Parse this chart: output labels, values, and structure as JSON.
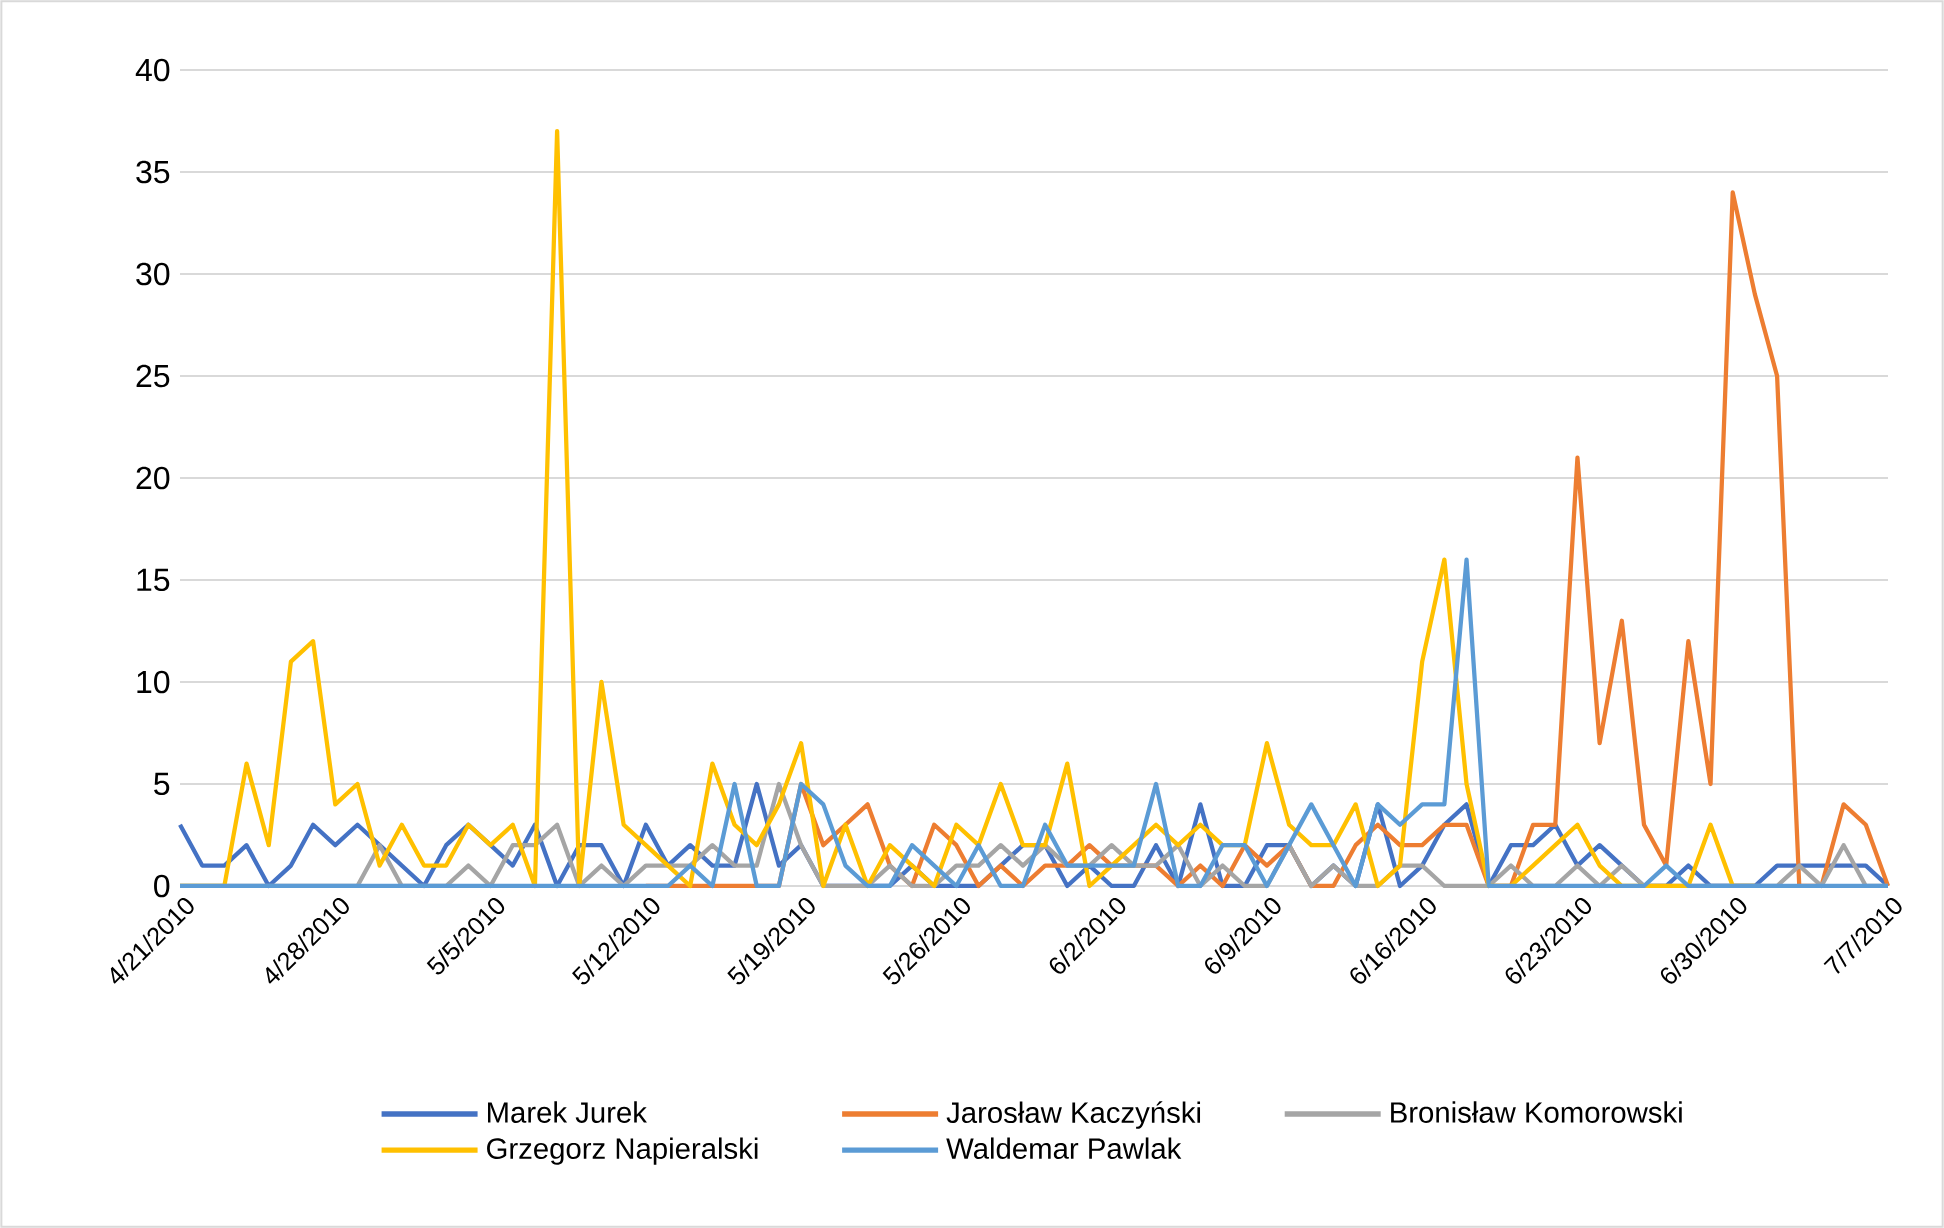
{
  "chart_data": {
    "type": "line",
    "x": [
      "2010-04-21",
      "2010-04-22",
      "2010-04-23",
      "2010-04-24",
      "2010-04-25",
      "2010-04-26",
      "2010-04-27",
      "2010-04-28",
      "2010-04-29",
      "2010-04-30",
      "2010-05-01",
      "2010-05-02",
      "2010-05-03",
      "2010-05-04",
      "2010-05-05",
      "2010-05-06",
      "2010-05-07",
      "2010-05-08",
      "2010-05-09",
      "2010-05-10",
      "2010-05-11",
      "2010-05-12",
      "2010-05-13",
      "2010-05-14",
      "2010-05-15",
      "2010-05-16",
      "2010-05-17",
      "2010-05-18",
      "2010-05-19",
      "2010-05-20",
      "2010-05-21",
      "2010-05-22",
      "2010-05-23",
      "2010-05-24",
      "2010-05-25",
      "2010-05-26",
      "2010-05-27",
      "2010-05-28",
      "2010-05-29",
      "2010-05-30",
      "2010-05-31",
      "2010-06-01",
      "2010-06-02",
      "2010-06-03",
      "2010-06-04",
      "2010-06-05",
      "2010-06-06",
      "2010-06-07",
      "2010-06-08",
      "2010-06-09",
      "2010-06-10",
      "2010-06-11",
      "2010-06-12",
      "2010-06-13",
      "2010-06-14",
      "2010-06-15",
      "2010-06-16",
      "2010-06-17",
      "2010-06-18",
      "2010-06-19",
      "2010-06-20",
      "2010-06-21",
      "2010-06-22",
      "2010-06-23",
      "2010-06-24",
      "2010-06-25",
      "2010-06-26",
      "2010-06-27",
      "2010-06-28",
      "2010-06-29",
      "2010-06-30",
      "2010-07-01",
      "2010-07-02",
      "2010-07-03",
      "2010-07-04",
      "2010-07-05",
      "2010-07-06",
      "2010-07-07"
    ],
    "series": [
      {
        "name": "Marek Jurek",
        "color": "#4472c4",
        "values": [
          3,
          1,
          1,
          2,
          0,
          1,
          3,
          2,
          3,
          2,
          1,
          0,
          2,
          3,
          2,
          1,
          3,
          0,
          2,
          2,
          0,
          3,
          1,
          2,
          1,
          1,
          5,
          1,
          2,
          0,
          0,
          0,
          0,
          1,
          0,
          0,
          0,
          1,
          2,
          2,
          0,
          1,
          0,
          0,
          2,
          0,
          4,
          0,
          0,
          2,
          2,
          0,
          1,
          0,
          4,
          0,
          1,
          3,
          4,
          0,
          2,
          2,
          3,
          1,
          2,
          1,
          0,
          0,
          1,
          0,
          0,
          0,
          1,
          1,
          1,
          1,
          1,
          0
        ]
      },
      {
        "name": "Jarosław Kaczyński",
        "color": "#ed7d31",
        "values": [
          null,
          null,
          null,
          null,
          null,
          null,
          null,
          null,
          null,
          null,
          null,
          null,
          null,
          null,
          null,
          null,
          null,
          null,
          null,
          null,
          null,
          0,
          0,
          0,
          0,
          0,
          0,
          0,
          5,
          2,
          3,
          4,
          1,
          0,
          3,
          2,
          0,
          1,
          0,
          1,
          1,
          2,
          1,
          1,
          1,
          0,
          1,
          0,
          2,
          1,
          2,
          0,
          0,
          2,
          3,
          2,
          2,
          3,
          3,
          0,
          0,
          3,
          3,
          21,
          7,
          13,
          3,
          1,
          12,
          5,
          34,
          29,
          25,
          0,
          0,
          4,
          3,
          0
        ]
      },
      {
        "name": "Bronisław Komorowski",
        "color": "#a5a5a5",
        "values": [
          0,
          0,
          0,
          0,
          0,
          0,
          0,
          0,
          0,
          2,
          0,
          0,
          0,
          1,
          0,
          2,
          2,
          3,
          0,
          1,
          0,
          1,
          1,
          1,
          2,
          1,
          1,
          5,
          2,
          0,
          0,
          0,
          1,
          0,
          0,
          1,
          1,
          2,
          1,
          2,
          1,
          1,
          2,
          1,
          1,
          2,
          0,
          1,
          0,
          0,
          2,
          0,
          1,
          0,
          0,
          1,
          1,
          0,
          0,
          0,
          1,
          0,
          0,
          1,
          0,
          1,
          0,
          0,
          0,
          0,
          0,
          0,
          0,
          1,
          0,
          2,
          0,
          0
        ]
      },
      {
        "name": "Grzegorz Napieralski",
        "color": "#ffc000",
        "values": [
          0,
          0,
          0,
          6,
          2,
          11,
          12,
          4,
          5,
          1,
          3,
          1,
          1,
          3,
          2,
          3,
          0,
          37,
          0,
          10,
          3,
          2,
          1,
          0,
          6,
          3,
          2,
          4,
          7,
          0,
          3,
          0,
          2,
          1,
          0,
          3,
          2,
          5,
          2,
          2,
          6,
          0,
          1,
          2,
          3,
          2,
          3,
          2,
          2,
          7,
          3,
          2,
          2,
          4,
          0,
          1,
          11,
          16,
          5,
          0,
          0,
          1,
          2,
          3,
          1,
          0,
          0,
          0,
          0,
          3,
          0,
          0,
          null,
          null,
          null,
          null,
          null,
          null
        ]
      },
      {
        "name": "Waldemar Pawlak",
        "color": "#5b9bd5",
        "values": [
          0,
          0,
          0,
          0,
          0,
          0,
          0,
          0,
          0,
          0,
          0,
          0,
          0,
          0,
          0,
          0,
          0,
          0,
          0,
          0,
          0,
          0,
          0,
          1,
          0,
          5,
          0,
          0,
          5,
          4,
          1,
          0,
          0,
          2,
          1,
          0,
          2,
          0,
          0,
          3,
          1,
          1,
          1,
          1,
          5,
          0,
          0,
          2,
          2,
          0,
          2,
          4,
          2,
          0,
          4,
          3,
          4,
          4,
          16,
          0,
          0,
          0,
          0,
          0,
          0,
          0,
          0,
          1,
          0,
          0,
          0,
          0,
          0,
          0,
          0,
          0,
          0,
          0
        ]
      }
    ],
    "xlim": [
      "2010-04-21",
      "2010-07-07"
    ],
    "xticks": [
      {
        "value": "2010-04-21",
        "label": "4/21/2010"
      },
      {
        "value": "2010-04-28",
        "label": "4/28/2010"
      },
      {
        "value": "2010-05-05",
        "label": "5/5/2010"
      },
      {
        "value": "2010-05-12",
        "label": "5/12/2010"
      },
      {
        "value": "2010-05-19",
        "label": "5/19/2010"
      },
      {
        "value": "2010-05-26",
        "label": "5/26/2010"
      },
      {
        "value": "2010-06-02",
        "label": "6/2/2010"
      },
      {
        "value": "2010-06-09",
        "label": "6/9/2010"
      },
      {
        "value": "2010-06-16",
        "label": "6/16/2010"
      },
      {
        "value": "2010-06-23",
        "label": "6/23/2010"
      },
      {
        "value": "2010-06-30",
        "label": "6/30/2010"
      },
      {
        "value": "2010-07-07",
        "label": "7/7/2010"
      }
    ],
    "ylim": [
      0,
      40
    ],
    "yticks": [
      0,
      5,
      10,
      15,
      20,
      25,
      30,
      35,
      40
    ],
    "grid": "y",
    "legend": "bottom",
    "marker": "none",
    "line_style": "solid"
  }
}
